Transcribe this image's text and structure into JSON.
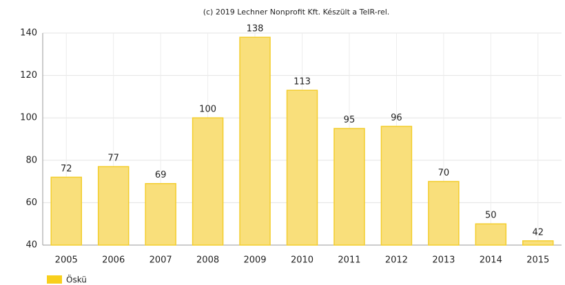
{
  "chart_data": {
    "type": "bar",
    "title": "(c) 2019 Lechner Nonprofit Kft. Készült a TeIR-rel.",
    "categories": [
      "2005",
      "2006",
      "2007",
      "2008",
      "2009",
      "2010",
      "2011",
      "2012",
      "2013",
      "2014",
      "2015"
    ],
    "series": [
      {
        "name": "Öskü",
        "color": "#f9df7b",
        "values": [
          72,
          77,
          69,
          100,
          138,
          113,
          95,
          96,
          70,
          50,
          42
        ]
      }
    ],
    "ylim": [
      40,
      140
    ],
    "yticks": [
      40,
      60,
      80,
      100,
      120,
      140
    ],
    "grid": true,
    "legend": "bottom-left"
  }
}
